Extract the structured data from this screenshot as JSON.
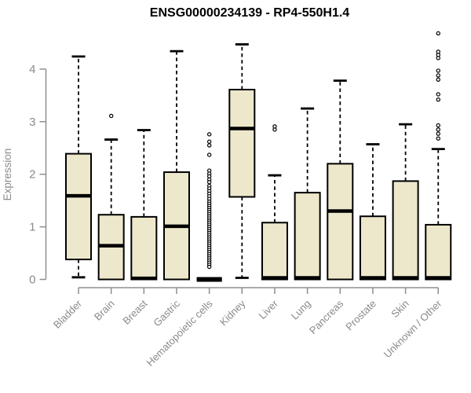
{
  "chart_data": {
    "type": "boxplot",
    "title": "ENSG00000234139 - RP4-550H1.4",
    "ylabel": "Expression",
    "xlabel": "",
    "ylim": [
      0,
      4.7
    ],
    "yticks": [
      0,
      1,
      2,
      3,
      4
    ],
    "grid": false,
    "legend": "none",
    "categories": [
      "Bladder",
      "Brain",
      "Breast",
      "Gastric",
      "Hematopoietic cells",
      "Kidney",
      "Liver",
      "Lung",
      "Pancreas",
      "Prostate",
      "Skin",
      "Unknown / Other"
    ],
    "series": [
      {
        "name": "Bladder",
        "whisker_low": 0.04,
        "q1": 0.38,
        "median": 1.59,
        "q3": 2.39,
        "whisker_high": 4.24,
        "outliers": []
      },
      {
        "name": "Brain",
        "whisker_low": 0,
        "q1": 0,
        "median": 0.64,
        "q3": 1.23,
        "whisker_high": 2.66,
        "outliers": [
          3.11
        ]
      },
      {
        "name": "Breast",
        "whisker_low": 0,
        "q1": 0,
        "median": 0.02,
        "q3": 1.19,
        "whisker_high": 2.84,
        "outliers": []
      },
      {
        "name": "Gastric",
        "whisker_low": 0,
        "q1": 0,
        "median": 1.01,
        "q3": 2.04,
        "whisker_high": 4.34,
        "outliers": []
      },
      {
        "name": "Hematopoietic cells",
        "whisker_low": 0,
        "q1": 0,
        "median": 0,
        "q3": 0,
        "whisker_high": 0,
        "outliers": [
          2.76,
          2.62,
          2.55,
          2.37,
          2.07,
          2.01,
          1.96,
          1.9,
          1.85,
          1.78,
          1.73,
          1.68,
          1.63,
          1.58,
          1.53,
          1.48,
          1.44,
          1.4,
          1.36,
          1.32,
          1.28,
          1.24,
          1.2,
          1.16,
          1.12,
          1.08,
          1.04,
          1.0,
          0.96,
          0.92,
          0.88,
          0.84,
          0.8,
          0.76,
          0.72,
          0.68,
          0.64,
          0.6,
          0.56,
          0.52,
          0.48,
          0.44,
          0.4,
          0.36,
          0.32,
          0.28,
          0.24
        ]
      },
      {
        "name": "Kidney",
        "whisker_low": 0.03,
        "q1": 1.57,
        "median": 2.87,
        "q3": 3.61,
        "whisker_high": 4.47,
        "outliers": []
      },
      {
        "name": "Liver",
        "whisker_low": 0,
        "q1": 0,
        "median": 0.03,
        "q3": 1.08,
        "whisker_high": 1.98,
        "outliers": [
          2.85,
          2.91
        ]
      },
      {
        "name": "Lung",
        "whisker_low": 0,
        "q1": 0,
        "median": 0.03,
        "q3": 1.65,
        "whisker_high": 3.25,
        "outliers": []
      },
      {
        "name": "Pancreas",
        "whisker_low": 0,
        "q1": 0,
        "median": 1.3,
        "q3": 2.2,
        "whisker_high": 3.78,
        "outliers": []
      },
      {
        "name": "Prostate",
        "whisker_low": 0,
        "q1": 0,
        "median": 0.03,
        "q3": 1.2,
        "whisker_high": 2.57,
        "outliers": []
      },
      {
        "name": "Skin",
        "whisker_low": 0,
        "q1": 0,
        "median": 0.03,
        "q3": 1.87,
        "whisker_high": 2.95,
        "outliers": []
      },
      {
        "name": "Unknown / Other",
        "whisker_low": 0,
        "q1": 0,
        "median": 0.03,
        "q3": 1.04,
        "whisker_high": 2.48,
        "outliers": [
          2.68,
          2.77,
          2.85,
          2.93,
          3.42,
          3.52,
          3.8,
          3.88,
          3.97,
          4.21,
          4.27,
          4.33,
          4.68
        ]
      }
    ],
    "colors": {
      "box_fill": "#ede8cc",
      "box_border": "#000000",
      "median": "#000000",
      "whisker": "#000000",
      "outlier": "#000000",
      "axis": "#8f8f8f",
      "text": "#8a8a8a",
      "title": "#000000",
      "background": "#ffffff"
    }
  }
}
